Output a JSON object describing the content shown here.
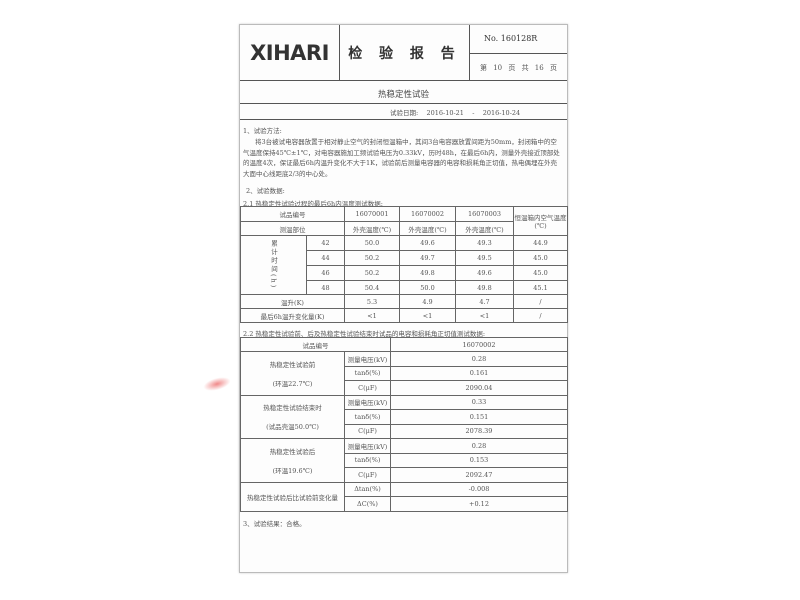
{
  "header": {
    "logo": "XIHARI",
    "title": "检 验 报 告",
    "number": "No. 160128R",
    "page": "第 10 页 共 16 页"
  },
  "section_title": "热稳定性试验",
  "test_date": {
    "label": "试验日期:",
    "start": "2016-10-21",
    "sep": "-",
    "end": "2016-10-24"
  },
  "method": {
    "heading": "1、试验方法:",
    "text": "将3台被试电容器放置于相对静止空气的封闭恒温箱中，其间3台电容器放置间距为50mm，封闭箱中的空气温度保持45℃±1℃，对电容器施加工频试验电压为0.33kV，历时48h，在最后6h内，测量外壳接近顶部处的温度4次，保证最后6h内温升变化不大于1K，试验前后测量电容器的电容和损耗角正切值，热电偶埋在外壳大面中心线距底2/3的中心处。"
  },
  "data_heading": "2、试验数据:",
  "table1": {
    "caption": "2.1 热稳定性试验过程的最后6h内温度测试数据:",
    "sample_label": "试品编号",
    "samples": [
      "16070001",
      "16070002",
      "16070003"
    ],
    "box_temp_label": "恒温箱内空气温度(℃)",
    "position_label": "测温部位",
    "shell_temp": "外壳温度(℃)",
    "time_label": "累计时间(h)",
    "rows": [
      {
        "h": "42",
        "v": [
          "50.0",
          "49.6",
          "49.3",
          "44.9"
        ]
      },
      {
        "h": "44",
        "v": [
          "50.2",
          "49.7",
          "49.5",
          "45.0"
        ]
      },
      {
        "h": "46",
        "v": [
          "50.2",
          "49.8",
          "49.6",
          "45.0"
        ]
      },
      {
        "h": "48",
        "v": [
          "50.4",
          "50.0",
          "49.8",
          "45.1"
        ]
      }
    ],
    "rise_label": "温升(K)",
    "rise": [
      "5.3",
      "4.9",
      "4.7",
      "/"
    ],
    "change_label": "最后6h温升变化量(K)",
    "change": [
      "<1",
      "<1",
      "<1",
      "/"
    ]
  },
  "table2": {
    "caption": "2.2 热稳定性试验前、后及热稳定性试验结束时试品的电容和损耗角正切值测试数据:",
    "sample_label": "试品编号",
    "sample": "16070002",
    "groups": [
      {
        "name": "热稳定性试验前",
        "cond": "(环温22.7℃)",
        "rows": [
          [
            "测量电压(kV)",
            "0.28"
          ],
          [
            "tanδ(%)",
            "0.161"
          ],
          [
            "C(μF)",
            "2090.04"
          ]
        ]
      },
      {
        "name": "热稳定性试验结束时",
        "cond": "(试品壳温50.0℃)",
        "rows": [
          [
            "测量电压(kV)",
            "0.33"
          ],
          [
            "tanδ(%)",
            "0.151"
          ],
          [
            "C(μF)",
            "2078.39"
          ]
        ]
      },
      {
        "name": "热稳定性试验后",
        "cond": "(环温19.6℃)",
        "rows": [
          [
            "测量电压(kV)",
            "0.28"
          ],
          [
            "tanδ(%)",
            "0.153"
          ],
          [
            "C(μF)",
            "2092.47"
          ]
        ]
      }
    ],
    "change_label": "热稳定性试验后比试验前变化量",
    "change_rows": [
      [
        "Δtan(%)",
        "-0.008"
      ],
      [
        "ΔC(%)",
        "+0.12"
      ]
    ]
  },
  "result": "3、试验结果：合格。"
}
